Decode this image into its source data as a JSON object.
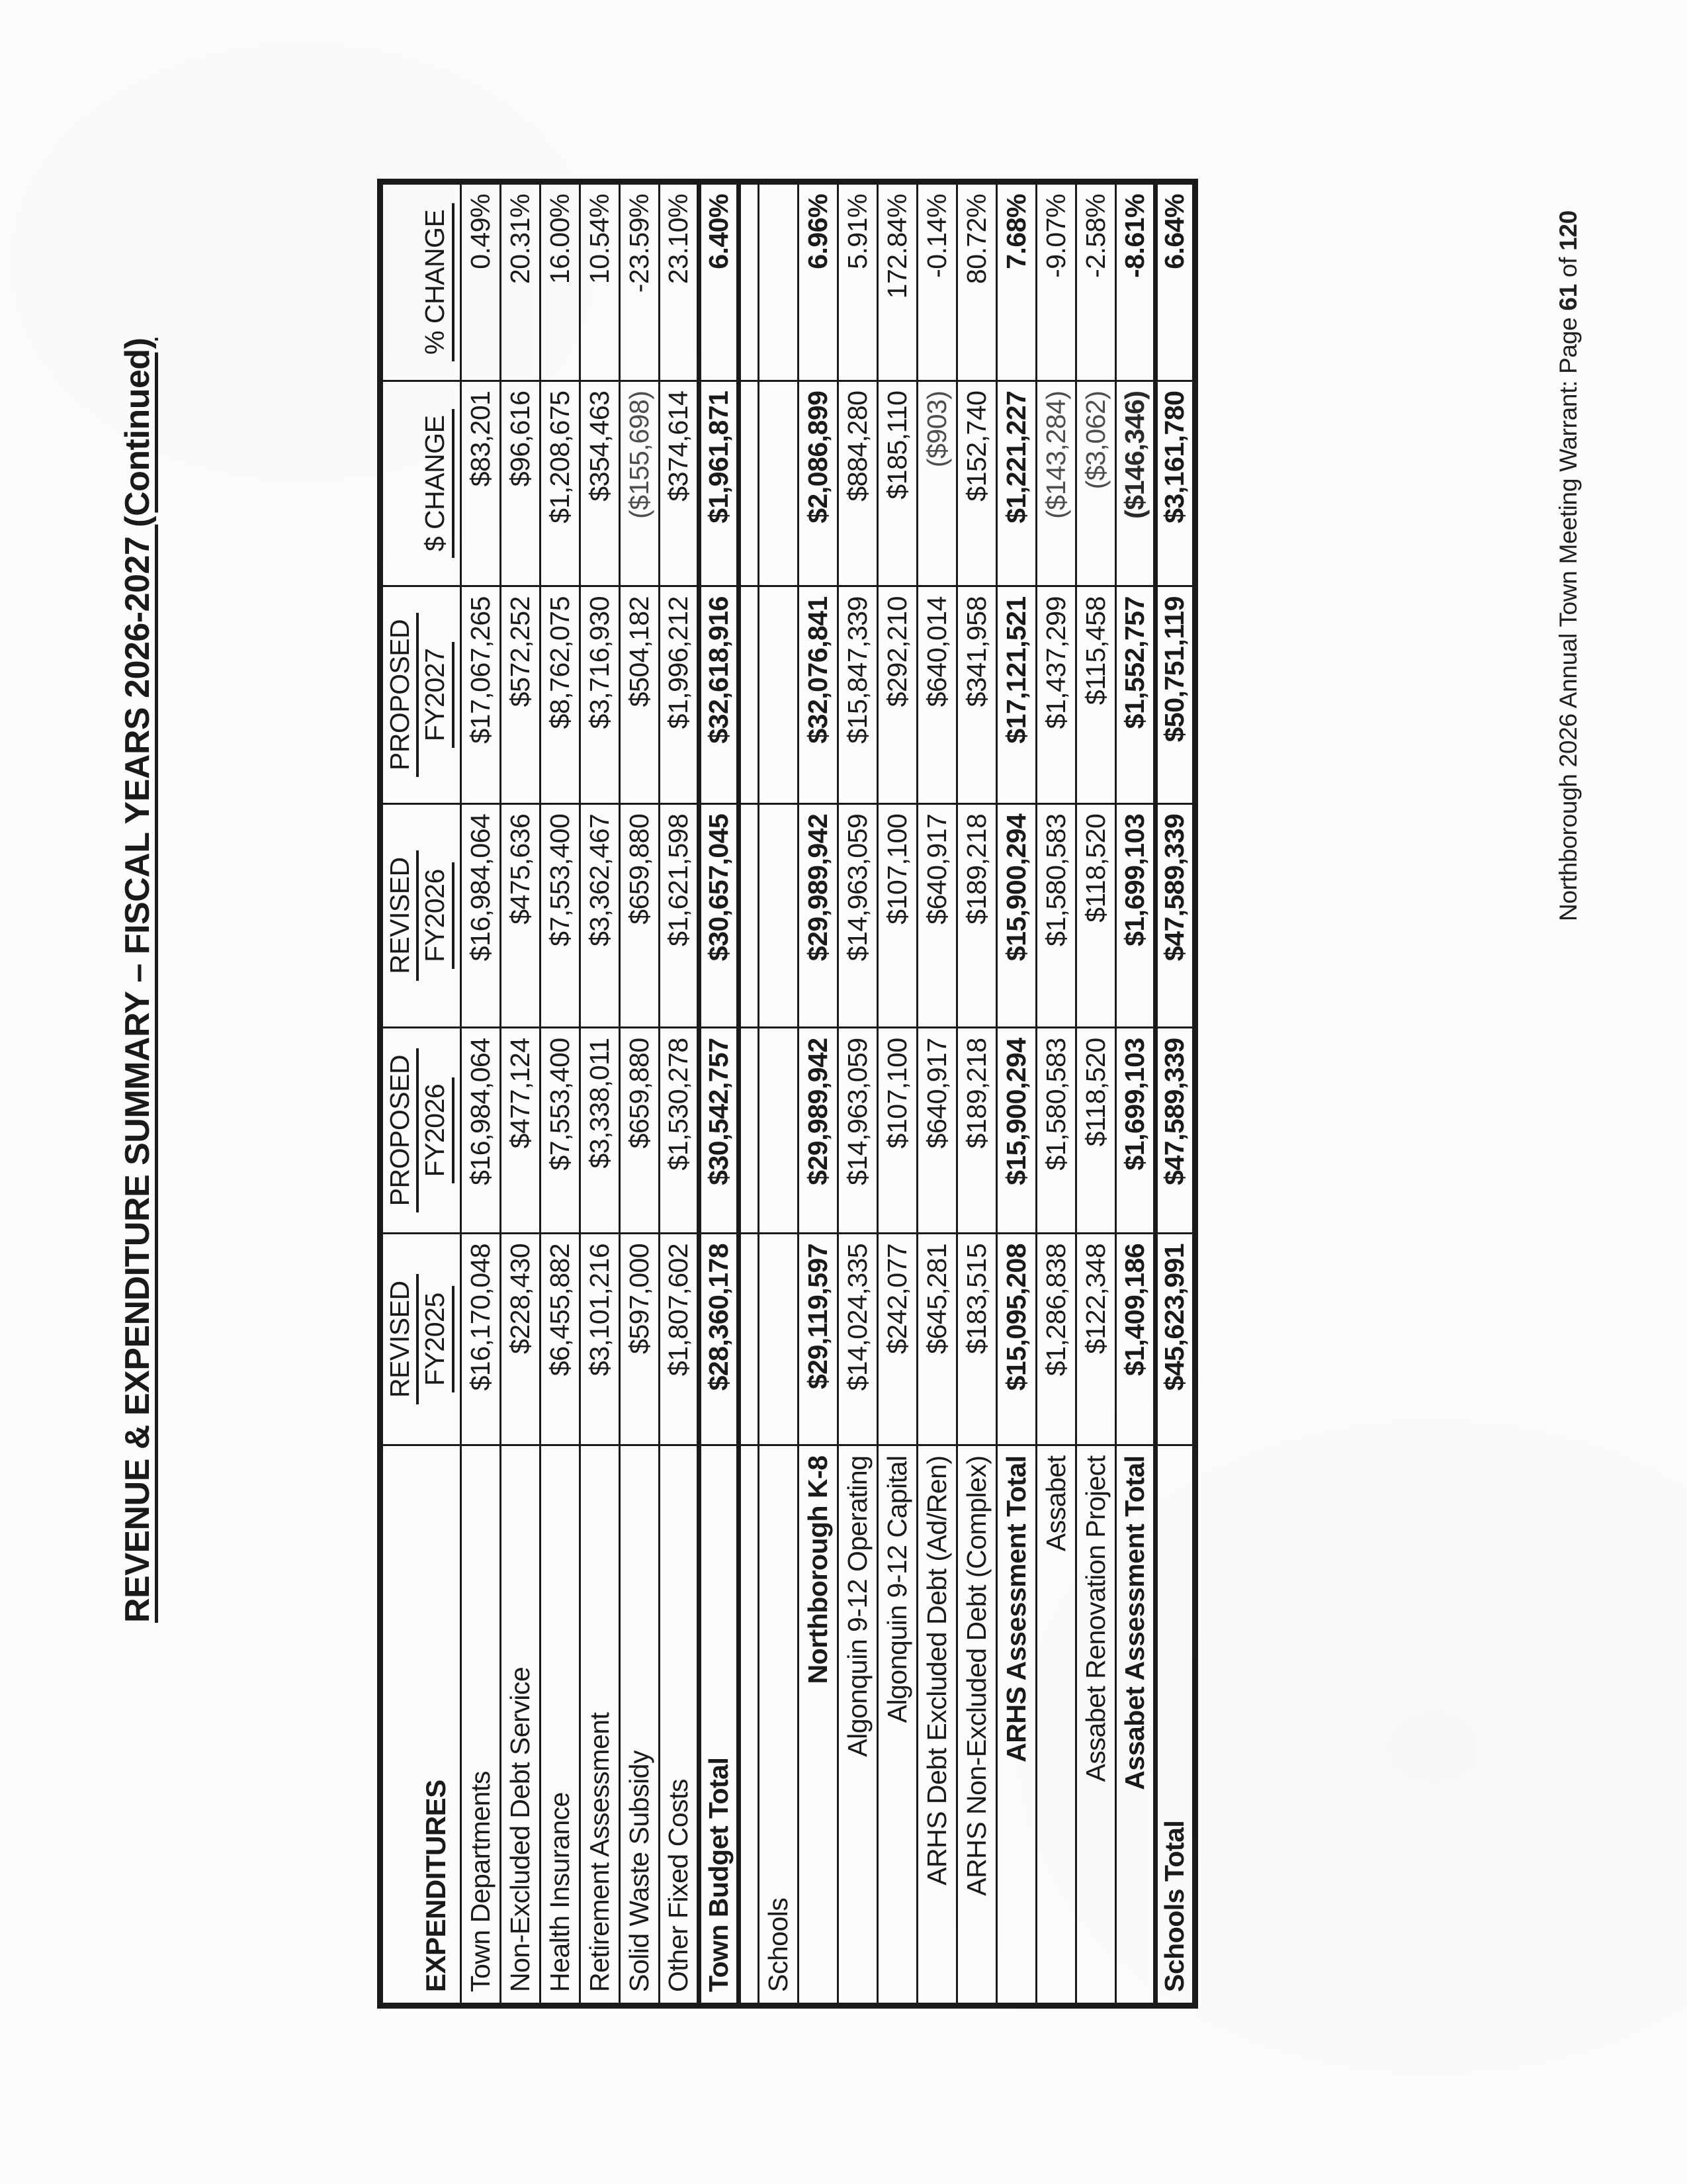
{
  "page": {
    "title": "REVENUE & EXPENDITURE SUMMARY – FISCAL YEARS 2026-2027 (Continued)",
    "footer": {
      "prefix": "Northborough 2026 Annual Town Meeting Warrant: Page",
      "page_number": "61",
      "separator": "of",
      "total_pages": "120"
    },
    "colors": {
      "ink": "#1a1a1a",
      "paper": "#fcfcfa"
    }
  },
  "table": {
    "header": {
      "expenditures_label": "EXPENDITURES",
      "columns": [
        {
          "line1": "REVISED",
          "line2": "FY2025"
        },
        {
          "line1": "PROPOSED",
          "line2": "FY2026"
        },
        {
          "line1": "REVISED",
          "line2": "FY2026"
        },
        {
          "line1": "PROPOSED",
          "line2": "FY2027"
        },
        {
          "line1": "$ CHANGE",
          "line2": ""
        },
        {
          "line1": "% CHANGE",
          "line2": ""
        }
      ]
    },
    "rows": [
      {
        "label": "Town Departments",
        "values": [
          "$16,170,048",
          "$16,984,064",
          "$16,984,064",
          "$17,067,265",
          "$83,201",
          "0.49%"
        ],
        "bold": false,
        "indent": false,
        "spacer": false,
        "total": false
      },
      {
        "label": "Non-Excluded Debt Service",
        "values": [
          "$228,430",
          "$477,124",
          "$475,636",
          "$572,252",
          "$96,616",
          "20.31%"
        ],
        "bold": false,
        "indent": false,
        "spacer": false,
        "total": false
      },
      {
        "label": "Health Insurance",
        "values": [
          "$6,455,882",
          "$7,553,400",
          "$7,553,400",
          "$8,762,075",
          "$1,208,675",
          "16.00%"
        ],
        "bold": false,
        "indent": false,
        "spacer": false,
        "total": false
      },
      {
        "label": "Retirement Assessment",
        "values": [
          "$3,101,216",
          "$3,338,011",
          "$3,362,467",
          "$3,716,930",
          "$354,463",
          "10.54%"
        ],
        "bold": false,
        "indent": false,
        "spacer": false,
        "total": false
      },
      {
        "label": "Solid Waste Subsidy",
        "values": [
          "$597,000",
          "$659,880",
          "$659,880",
          "$504,182",
          "($155,698)",
          "-23.59%"
        ],
        "bold": false,
        "indent": false,
        "spacer": false,
        "total": false
      },
      {
        "label": "Other Fixed Costs",
        "values": [
          "$1,807,602",
          "$1,530,278",
          "$1,621,598",
          "$1,996,212",
          "$374,614",
          "23.10%"
        ],
        "bold": false,
        "indent": false,
        "spacer": false,
        "total": false
      },
      {
        "label": "Town Budget Total",
        "values": [
          "$28,360,178",
          "$30,542,757",
          "$30,657,045",
          "$32,618,916",
          "$1,961,871",
          "6.40%"
        ],
        "bold": true,
        "indent": false,
        "spacer": false,
        "total": true
      },
      {
        "label": "",
        "values": [
          "",
          "",
          "",
          "",
          "",
          ""
        ],
        "bold": false,
        "indent": false,
        "spacer": true,
        "total": false
      },
      {
        "label": "Schools",
        "values": [
          "",
          "",
          "",
          "",
          "",
          ""
        ],
        "bold": false,
        "indent": false,
        "spacer": false,
        "total": false
      },
      {
        "label": "Northborough K-8",
        "values": [
          "$29,119,597",
          "$29,989,942",
          "$29,989,942",
          "$32,076,841",
          "$2,086,899",
          "6.96%"
        ],
        "bold": true,
        "indent": true,
        "spacer": false,
        "total": false
      },
      {
        "label": "Algonquin 9-12 Operating",
        "values": [
          "$14,024,335",
          "$14,963,059",
          "$14,963,059",
          "$15,847,339",
          "$884,280",
          "5.91%"
        ],
        "bold": false,
        "indent": true,
        "spacer": false,
        "total": false
      },
      {
        "label": "Algonquin 9-12 Capital",
        "values": [
          "$242,077",
          "$107,100",
          "$107,100",
          "$292,210",
          "$185,110",
          "172.84%"
        ],
        "bold": false,
        "indent": true,
        "spacer": false,
        "total": false
      },
      {
        "label": "ARHS Debt Excluded Debt (Ad/Ren)",
        "values": [
          "$645,281",
          "$640,917",
          "$640,917",
          "$640,014",
          "($903)",
          "-0.14%"
        ],
        "bold": false,
        "indent": true,
        "spacer": false,
        "total": false
      },
      {
        "label": "ARHS Non-Excluded Debt (Complex)",
        "values": [
          "$183,515",
          "$189,218",
          "$189,218",
          "$341,958",
          "$152,740",
          "80.72%"
        ],
        "bold": false,
        "indent": true,
        "spacer": false,
        "total": false
      },
      {
        "label": "ARHS Assessment Total",
        "values": [
          "$15,095,208",
          "$15,900,294",
          "$15,900,294",
          "$17,121,521",
          "$1,221,227",
          "7.68%"
        ],
        "bold": true,
        "indent": true,
        "spacer": false,
        "total": false
      },
      {
        "label": "Assabet",
        "values": [
          "$1,286,838",
          "$1,580,583",
          "$1,580,583",
          "$1,437,299",
          "($143,284)",
          "-9.07%"
        ],
        "bold": false,
        "indent": true,
        "spacer": false,
        "total": false
      },
      {
        "label": "Assabet Renovation Project",
        "values": [
          "$122,348",
          "$118,520",
          "$118,520",
          "$115,458",
          "($3,062)",
          "-2.58%"
        ],
        "bold": false,
        "indent": true,
        "spacer": false,
        "total": false
      },
      {
        "label": "Assabet Assessment Total",
        "values": [
          "$1,409,186",
          "$1,699,103",
          "$1,699,103",
          "$1,552,757",
          "($146,346)",
          "-8.61%"
        ],
        "bold": true,
        "indent": true,
        "spacer": false,
        "total": false
      },
      {
        "label": "Schools Total",
        "values": [
          "$45,623,991",
          "$47,589,339",
          "$47,589,339",
          "$50,751,119",
          "$3,161,780",
          "6.64%"
        ],
        "bold": true,
        "indent": false,
        "spacer": false,
        "total": true
      }
    ]
  }
}
